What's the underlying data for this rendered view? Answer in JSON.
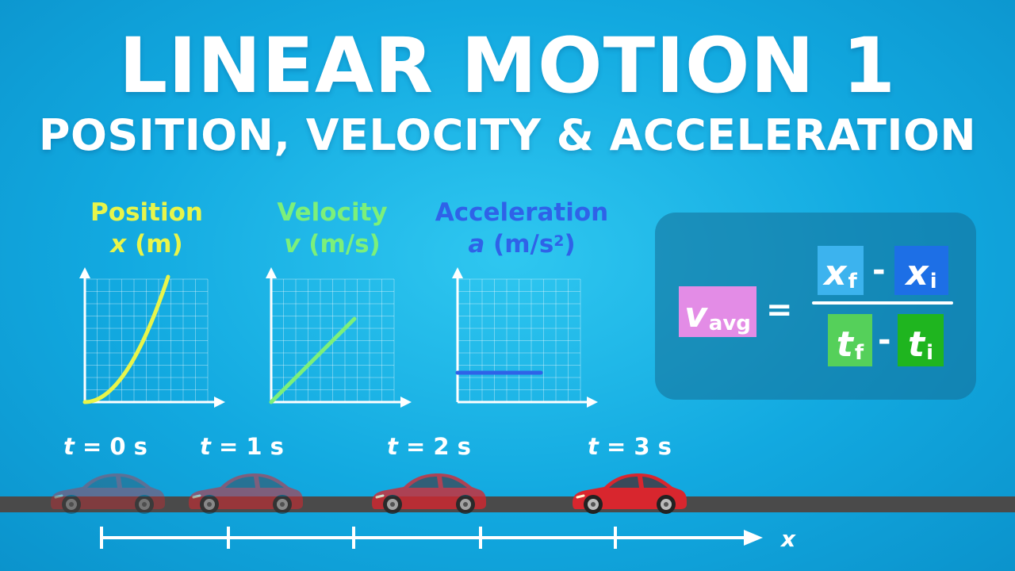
{
  "title": "LINEAR MOTION 1",
  "subtitle": "POSITION, VELOCITY & ACCELERATION",
  "graphs": [
    {
      "name": "Position",
      "var": "x",
      "unit_open": " (m)",
      "unit_sup": "",
      "unit_close": "",
      "color": "#e8f54a",
      "curve": "parabola"
    },
    {
      "name": "Velocity",
      "var": "v",
      "unit_open": " (m/s)",
      "unit_sup": "",
      "unit_close": "",
      "color": "#7cf07a",
      "curve": "linear"
    },
    {
      "name": "Acceleration",
      "var": "a",
      "unit_open": " (m/s",
      "unit_sup": "2",
      "unit_close": ")",
      "color": "#2f62e8",
      "curve": "constant"
    }
  ],
  "formula": {
    "lhs_main": "v",
    "lhs_sub": "avg",
    "equals": "=",
    "num_a_main": "x",
    "num_a_sub": "f",
    "num_b_main": "x",
    "num_b_sub": "i",
    "den_a_main": "t",
    "den_a_sub": "f",
    "den_b_main": "t",
    "den_b_sub": "i",
    "minus": "-",
    "colors": {
      "lhs": "#e38ce6",
      "xf": "#3cb3ee",
      "xi": "#1d6fe6",
      "tf": "#55d05a",
      "ti": "#1fb51f"
    }
  },
  "times": [
    {
      "var": "t",
      "rest": " = 0 s"
    },
    {
      "var": "t",
      "rest": " = 1 s"
    },
    {
      "var": "t",
      "rest": " = 2 s"
    },
    {
      "var": "t",
      "rest": " = 3 s"
    }
  ],
  "axis_label": "x",
  "colors": {
    "car": "#d8262e",
    "road": "#4a4a4a"
  }
}
